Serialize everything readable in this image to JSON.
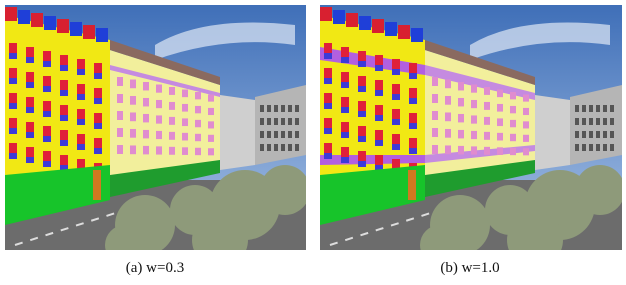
{
  "panels": [
    {
      "caption": "(a) w=0.3"
    },
    {
      "caption": "(b) w=1.0"
    }
  ]
}
